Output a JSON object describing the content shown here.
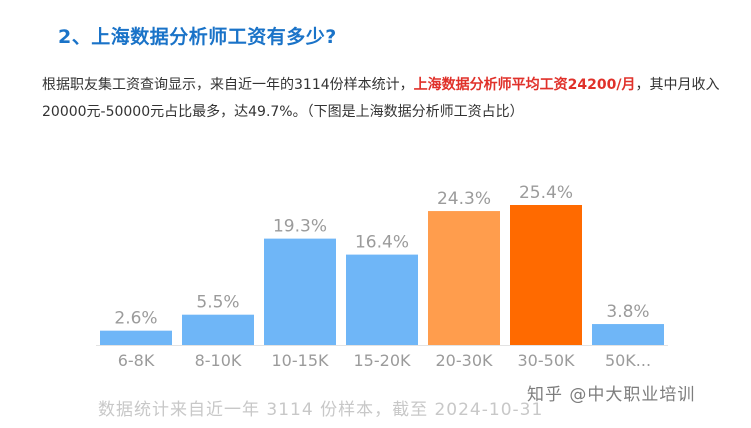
{
  "article": {
    "heading": "2、上海数据分析师工资有多少?",
    "paragraph_part1": "根据职友集工资查询显示，来自近一年的3114份样本统计，",
    "paragraph_highlight": "上海数据分析师平均工资24200/月",
    "paragraph_part2": "，其中月收入20000元-50000元占比最多，达49.7%。（下图是上海数据分析师工资占比）"
  },
  "chart_data": {
    "type": "bar",
    "categories": [
      "6-8K",
      "8-10K",
      "10-15K",
      "15-20K",
      "20-30K",
      "30-50K",
      "50K..."
    ],
    "values": [
      2.6,
      5.5,
      19.3,
      16.4,
      24.3,
      25.4,
      3.8
    ],
    "value_labels": [
      "2.6%",
      "5.5%",
      "19.3%",
      "16.4%",
      "24.3%",
      "25.4%",
      "3.8%"
    ],
    "unit": "%",
    "ylim": [
      0,
      25.4
    ],
    "colors": {
      "default": "#6fb6f7",
      "highlight_light": "#ff9d4d",
      "highlight_dark": "#ff6a00",
      "label": "#9b9b9b",
      "baseline": "#e3e3e3"
    },
    "bar_colors": [
      "#6fb6f7",
      "#6fb6f7",
      "#6fb6f7",
      "#6fb6f7",
      "#ff9d4d",
      "#ff6a00",
      "#6fb6f7"
    ],
    "footnote": "数据统计来自近一年 3114 份样本，截至 2024-10-31"
  },
  "watermark": "知乎 @中大职业培训"
}
